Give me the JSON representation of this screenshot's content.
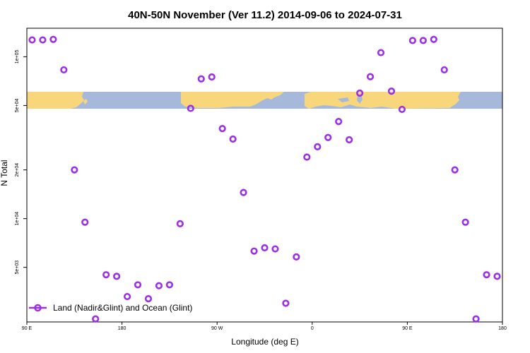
{
  "chart_data": {
    "type": "scatter",
    "title": "40N-50N November (Ver 11.2)   2014-09-06 to 2024-07-31",
    "xlabel": "Longitude (deg E)",
    "ylabel": "N Total",
    "x_ticks": [
      "90 E",
      "180",
      "90 W",
      "0",
      "90 E",
      "180"
    ],
    "y_ticks": [
      "5e+03",
      "1e+04",
      "2e+04",
      "5e+04",
      "1e+05"
    ],
    "y_tick_values": [
      5000,
      10000,
      20000,
      50000,
      100000
    ],
    "xlim": [
      90,
      540
    ],
    "ylim_log": [
      2300,
      150000
    ],
    "scale": "log",
    "series": [
      {
        "name": "Land (Nadir&Glint) and Ocean (Glint)",
        "color": "#9b30e8",
        "x": [
          95,
          105,
          115,
          125,
          135,
          145,
          155,
          165,
          175,
          185,
          195,
          205,
          215,
          225,
          235,
          245,
          255,
          265,
          275,
          285,
          295,
          305,
          315,
          325,
          335,
          345,
          355,
          365,
          375,
          385,
          395,
          405,
          415,
          425,
          435,
          445,
          455,
          465,
          475,
          485,
          495,
          505,
          515,
          525,
          535
        ],
        "y": [
          127000,
          127000,
          128000,
          83000,
          20000,
          9500,
          2400,
          4500,
          4400,
          3300,
          3900,
          3200,
          3850,
          3900,
          9300,
          48000,
          73000,
          75000,
          36000,
          31000,
          14500,
          6300,
          6600,
          6500,
          3000,
          5800,
          24000,
          27800,
          31700,
          39800,
          30700,
          59600,
          75300,
          106000,
          61300,
          47300,
          126000,
          126000,
          128000,
          83000,
          20000,
          9500,
          2400,
          4500,
          4400
        ]
      }
    ],
    "legend": {
      "position": "bottom-left",
      "label": "Land (Nadir&Glint) and Ocean (Glint)"
    }
  }
}
